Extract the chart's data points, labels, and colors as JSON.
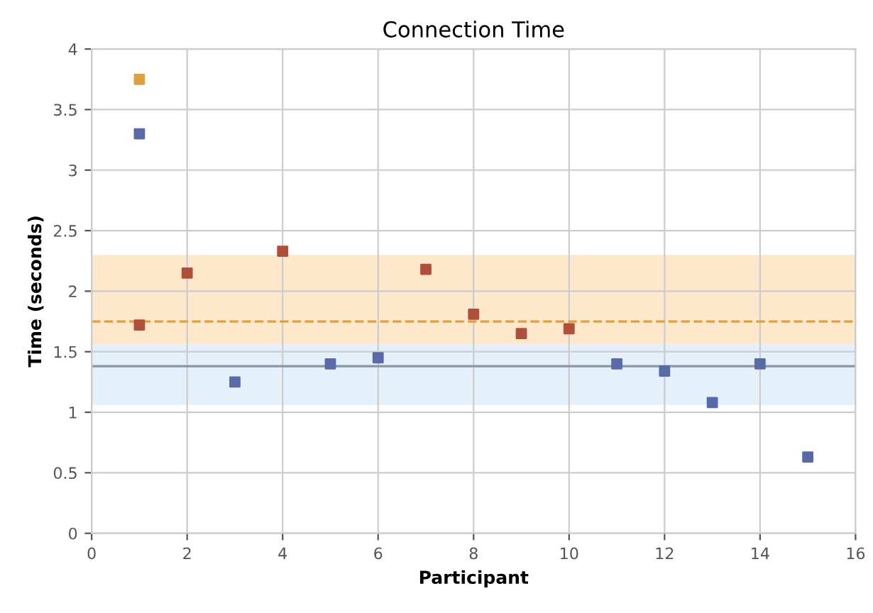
{
  "chart_data": {
    "type": "scatter",
    "title": "Connection Time",
    "xlabel": "Participant",
    "ylabel": "Time (seconds)",
    "series": [
      {
        "color": "#5a6aa8",
        "x": [
          1,
          3,
          5,
          6,
          11,
          12,
          13,
          14,
          15
        ],
        "values": [
          3.3,
          1.25,
          1.4,
          1.45,
          1.4,
          1.34,
          1.08,
          1.4,
          0.63
        ]
      },
      {
        "color": "#b0503a",
        "x": [
          1,
          2,
          4,
          7,
          8,
          9,
          10
        ],
        "values": [
          1.72,
          2.15,
          2.33,
          2.18,
          1.81,
          1.65,
          1.69
        ]
      },
      {
        "color": "#e0a040",
        "x": [
          1
        ],
        "values": [
          3.75
        ]
      }
    ],
    "xlim": [
      0,
      16
    ],
    "xticks": [
      0,
      2,
      4,
      6,
      8,
      10,
      12,
      14,
      16
    ],
    "ylim": [
      0,
      4
    ],
    "yticks": [
      0,
      0.5,
      1,
      1.5,
      2,
      2.5,
      3,
      3.5,
      4
    ],
    "ref_lines": [
      {
        "axis": "y",
        "value": 1.75,
        "color": "#e0a040",
        "line_style": "dashed"
      },
      {
        "axis": "y",
        "value": 1.38,
        "color": "#8a96a8",
        "line_style": "solid"
      }
    ],
    "bands": [
      {
        "axis": "y",
        "from": 1.56,
        "to": 2.3,
        "color": "#fde8cc"
      },
      {
        "axis": "y",
        "from": 1.06,
        "to": 1.56,
        "color": "#e4f0fa"
      }
    ],
    "grid": true,
    "marker": "square"
  }
}
